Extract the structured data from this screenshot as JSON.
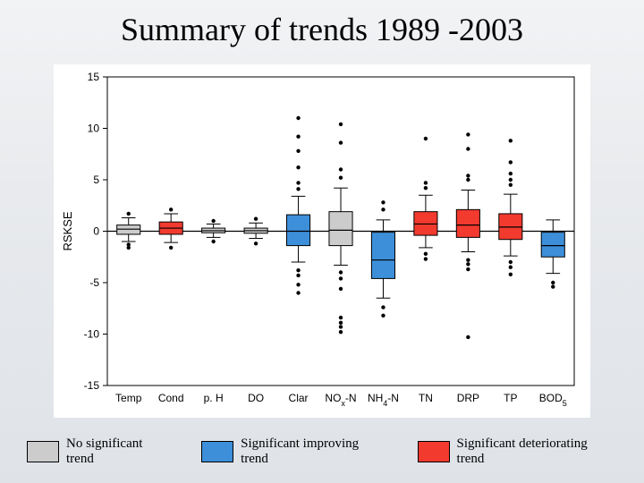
{
  "title": "Summary of trends 1989 -2003",
  "chart": {
    "type": "boxplot",
    "ylabel": "RSKSE",
    "ylim": [
      -15,
      15
    ],
    "yticks": [
      -15,
      -10,
      -5,
      0,
      5,
      10,
      15
    ],
    "background": "#ffffff",
    "border_color": "#000000",
    "zero_line_color": "#000000",
    "whisker_color": "#000000",
    "outlier_color": "#000000",
    "box_border": "#000000",
    "box_width": 0.55,
    "colors": {
      "none": "#cccccc",
      "improving": "#3d8fd9",
      "deteriorating": "#f23a2f"
    },
    "categories": [
      {
        "label": "Temp",
        "color": "none",
        "q1": -0.3,
        "median": 0.2,
        "q3": 0.6,
        "lo": -1.0,
        "hi": 1.3,
        "outliers": [
          -1.6,
          -1.3,
          1.7
        ]
      },
      {
        "label": "Cond",
        "color": "deteriorating",
        "q1": -0.3,
        "median": 0.3,
        "q3": 0.9,
        "lo": -1.1,
        "hi": 1.7,
        "outliers": [
          -1.6,
          2.1
        ]
      },
      {
        "label": "p. H",
        "color": "none",
        "q1": -0.15,
        "median": 0.05,
        "q3": 0.3,
        "lo": -0.6,
        "hi": 0.7,
        "outliers": [
          -1.0,
          1.0
        ]
      },
      {
        "label": "DO",
        "color": "none",
        "q1": -0.2,
        "median": 0.05,
        "q3": 0.3,
        "lo": -0.7,
        "hi": 0.8,
        "outliers": [
          -1.2,
          1.2
        ]
      },
      {
        "label": "Clar",
        "color": "improving",
        "q1": -1.4,
        "median": 0.0,
        "q3": 1.6,
        "lo": -3.0,
        "hi": 3.4,
        "outliers": [
          11.0,
          9.2,
          7.8,
          6.2,
          4.7,
          4.1,
          -3.8,
          -4.3,
          -5.2,
          -6.0
        ]
      },
      {
        "label": "NOx-N",
        "sub": "x",
        "color": "none",
        "q1": -1.4,
        "median": 0.1,
        "q3": 1.9,
        "lo": -3.3,
        "hi": 4.2,
        "outliers": [
          10.4,
          8.6,
          6.0,
          5.2,
          -4.0,
          -4.6,
          -5.6,
          -8.4,
          -8.9,
          -9.3,
          -9.8
        ]
      },
      {
        "label": "NH4-N",
        "sub": "4",
        "color": "improving",
        "q1": -4.6,
        "median": -2.8,
        "q3": -0.1,
        "lo": -6.5,
        "hi": 1.1,
        "outliers": [
          2.8,
          2.1,
          -7.4,
          -8.2
        ]
      },
      {
        "label": "TN",
        "color": "deteriorating",
        "q1": -0.4,
        "median": 0.7,
        "q3": 1.9,
        "lo": -1.6,
        "hi": 3.5,
        "outliers": [
          9.0,
          4.7,
          4.2,
          -2.2,
          -2.7
        ]
      },
      {
        "label": "DRP",
        "color": "deteriorating",
        "q1": -0.6,
        "median": 0.6,
        "q3": 2.1,
        "lo": -2.0,
        "hi": 4.0,
        "outliers": [
          9.4,
          8.0,
          5.4,
          5.0,
          -2.8,
          -3.2,
          -3.7,
          -10.3
        ]
      },
      {
        "label": "TP",
        "color": "deteriorating",
        "q1": -0.8,
        "median": 0.4,
        "q3": 1.7,
        "lo": -2.4,
        "hi": 3.6,
        "outliers": [
          8.8,
          6.7,
          5.6,
          5.0,
          4.5,
          -3.0,
          -3.5,
          -4.2
        ]
      },
      {
        "label": "BOD5",
        "sub": "5",
        "color": "improving",
        "q1": -2.5,
        "median": -1.4,
        "q3": -0.1,
        "lo": -4.1,
        "hi": 1.1,
        "outliers": [
          -5.0,
          -5.4
        ]
      }
    ]
  },
  "legend": [
    {
      "color": "none",
      "label": "No significant trend"
    },
    {
      "color": "improving",
      "label": "Significant improving trend"
    },
    {
      "color": "deteriorating",
      "label": "Significant deteriorating trend"
    }
  ]
}
